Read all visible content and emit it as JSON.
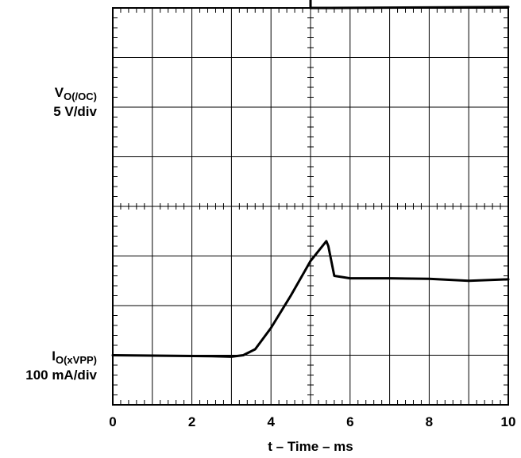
{
  "chart_data": {
    "type": "line",
    "title": "",
    "xlabel": "t – Time – ms",
    "xlim": [
      0,
      10
    ],
    "x_ticks": [
      "0",
      "2",
      "4",
      "6",
      "8",
      "10"
    ],
    "grid": true,
    "grid_divisions": {
      "x": 10,
      "y": 8
    },
    "series": [
      {
        "name": "VO(/OC)",
        "label_main": "V",
        "label_sub": "O(/OC)",
        "scale": "5 V/div",
        "color": "#000000",
        "points_div": [
          [
            0,
            5.0
          ],
          [
            4.99,
            5.0
          ],
          [
            5.0,
            4.8
          ],
          [
            5.0,
            4.0
          ],
          [
            5.5,
            4.0
          ],
          [
            10,
            4.02
          ]
        ]
      },
      {
        "name": "IO(xVPP)",
        "label_main": "I",
        "label_sub": "O(xVPP)",
        "scale": "100 mA/div",
        "color": "#000000",
        "points_div": [
          [
            0,
            0.0
          ],
          [
            2.5,
            -0.02
          ],
          [
            3.0,
            -0.03
          ],
          [
            3.3,
            0.0
          ],
          [
            3.6,
            0.12
          ],
          [
            4.0,
            0.55
          ],
          [
            4.5,
            1.2
          ],
          [
            5.0,
            1.9
          ],
          [
            5.4,
            2.3
          ],
          [
            5.45,
            2.2
          ],
          [
            5.6,
            1.6
          ],
          [
            6.0,
            1.55
          ],
          [
            7.0,
            1.55
          ],
          [
            8.0,
            1.54
          ],
          [
            9.0,
            1.5
          ],
          [
            10,
            1.53
          ]
        ]
      }
    ]
  }
}
